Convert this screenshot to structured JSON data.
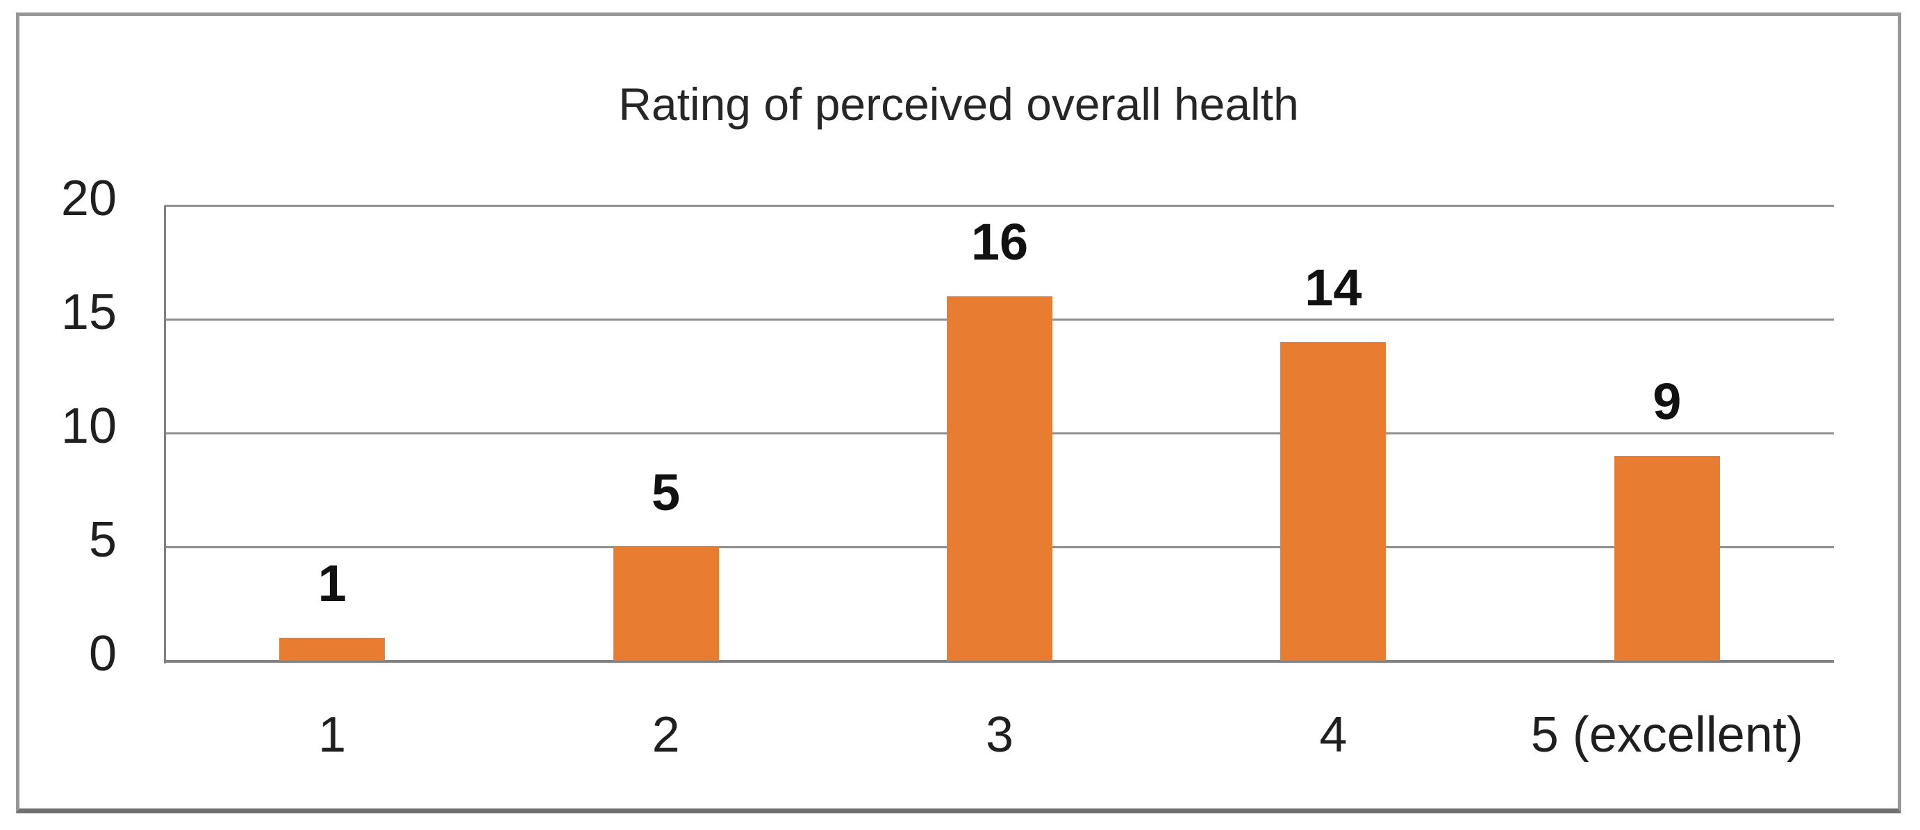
{
  "chart_data": {
    "type": "bar",
    "title": "Rating of perceived overall health",
    "categories": [
      "1",
      "2",
      "3",
      "4",
      "5 (excellent)"
    ],
    "values": [
      1,
      5,
      16,
      14,
      9
    ],
    "data_labels": [
      "1",
      "5",
      "16",
      "14",
      "9"
    ],
    "y_tick_labels": [
      "0",
      "5",
      "10",
      "15",
      "20"
    ],
    "y_ticks": [
      0,
      5,
      10,
      15,
      20
    ],
    "ylim": [
      0,
      20
    ],
    "xlabel": "",
    "ylabel": "",
    "grid": true,
    "legend_position": "none",
    "colors": {
      "bar_fill": "#E87D31",
      "gridline": "#8f8f8f",
      "axis_line": "#808080",
      "frame_border": "#979797",
      "title_text": "#262626",
      "tick_text": "#1f1f1f",
      "data_label_text": "#111111",
      "background": "#ffffff"
    }
  }
}
